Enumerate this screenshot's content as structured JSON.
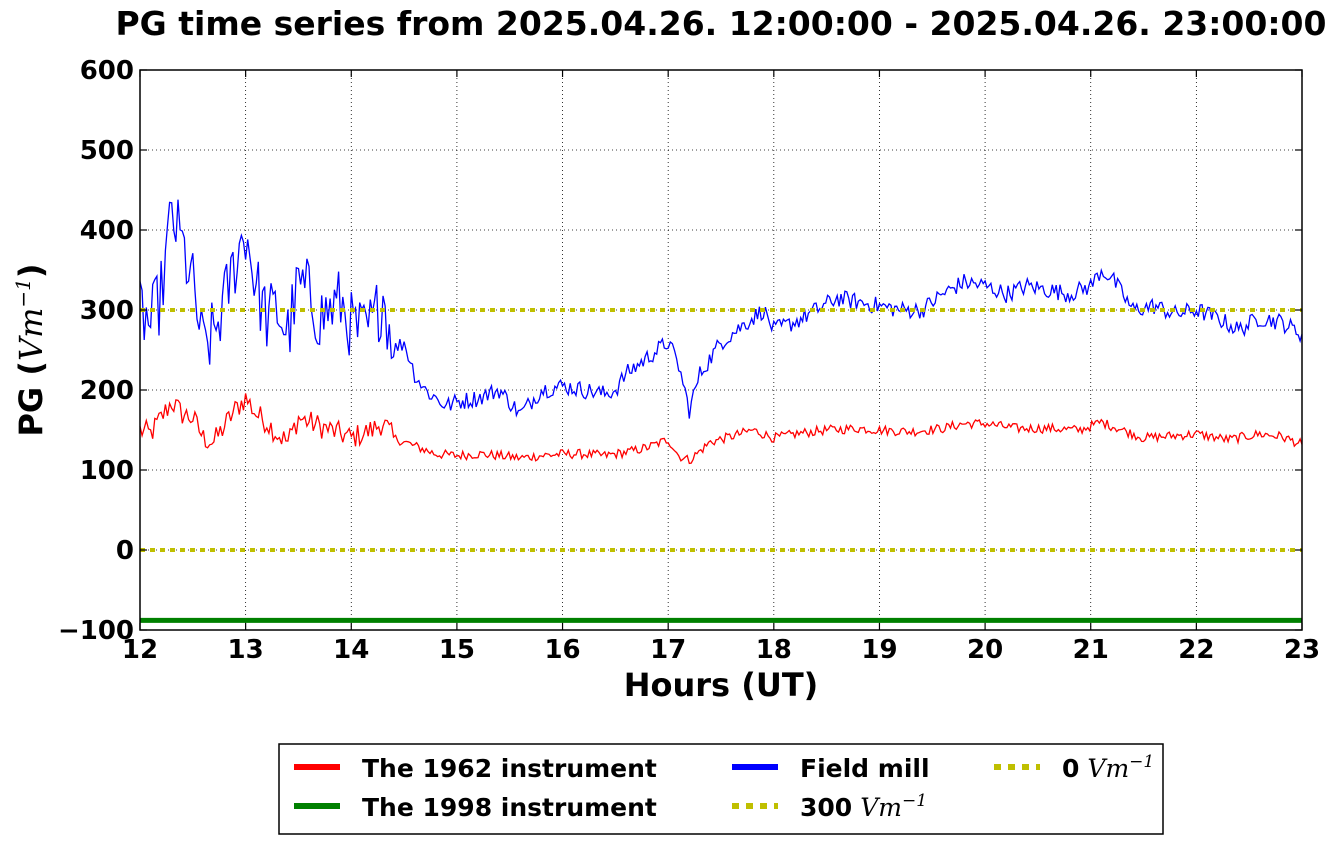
{
  "chart_data": {
    "type": "line",
    "title": "PG time series from 2025.04.26. 12:00:00 - 2025.04.26. 23:00:00",
    "xlabel": "Hours (UT)",
    "ylabel": "PG (",
    "ylabel_unit": "Vm",
    "ylabel_exp": "−1",
    "ylabel_close": ")",
    "xlim": [
      12,
      23
    ],
    "ylim": [
      -100,
      600
    ],
    "xticks": [
      12,
      13,
      14,
      15,
      16,
      17,
      18,
      19,
      20,
      21,
      22,
      23
    ],
    "yticks": [
      -100,
      0,
      100,
      200,
      300,
      400,
      500,
      600
    ],
    "ytick_labels": [
      "−100",
      "0",
      "100",
      "200",
      "300",
      "400",
      "500",
      "600"
    ],
    "grid": true,
    "legend_placement": "bottom-center, outside plot",
    "series": [
      {
        "name": "The 1962 instrument",
        "color": "#ff0000",
        "x": [
          12.0,
          12.1,
          12.2,
          12.3,
          12.4,
          12.5,
          12.6,
          12.7,
          12.8,
          12.9,
          13.0,
          13.1,
          13.2,
          13.3,
          13.4,
          13.5,
          13.6,
          13.7,
          13.8,
          13.9,
          14.0,
          14.1,
          14.2,
          14.3,
          14.4,
          14.5,
          14.6,
          14.8,
          15.0,
          15.2,
          15.4,
          15.6,
          15.8,
          16.0,
          16.2,
          16.4,
          16.6,
          16.8,
          17.0,
          17.1,
          17.2,
          17.4,
          17.6,
          17.8,
          18.0,
          18.2,
          18.5,
          18.8,
          19.0,
          19.3,
          19.6,
          19.8,
          20.0,
          20.3,
          20.6,
          20.9,
          21.1,
          21.3,
          21.5,
          21.8,
          22.0,
          22.3,
          22.6,
          22.8,
          23.0
        ],
        "values": [
          150,
          145,
          165,
          185,
          170,
          165,
          140,
          135,
          155,
          175,
          190,
          170,
          160,
          145,
          135,
          165,
          160,
          155,
          150,
          145,
          140,
          145,
          150,
          160,
          140,
          135,
          130,
          120,
          118,
          120,
          118,
          115,
          118,
          120,
          120,
          118,
          122,
          128,
          138,
          118,
          112,
          135,
          142,
          150,
          140,
          145,
          150,
          152,
          150,
          148,
          152,
          158,
          158,
          152,
          152,
          150,
          160,
          150,
          140,
          143,
          145,
          138,
          145,
          142,
          132
        ]
      },
      {
        "name": "The 1998 instrument",
        "color": "#008000",
        "x": [
          12,
          23
        ],
        "values": [
          -88,
          -88
        ]
      },
      {
        "name": "Field mill",
        "color": "#0000ff",
        "x": [
          12.0,
          12.1,
          12.2,
          12.3,
          12.4,
          12.5,
          12.6,
          12.7,
          12.8,
          12.9,
          13.0,
          13.1,
          13.2,
          13.3,
          13.4,
          13.5,
          13.6,
          13.7,
          13.8,
          13.9,
          14.0,
          14.1,
          14.2,
          14.3,
          14.4,
          14.5,
          14.6,
          14.7,
          14.8,
          14.9,
          15.0,
          15.2,
          15.4,
          15.6,
          15.8,
          16.0,
          16.2,
          16.4,
          16.5,
          16.6,
          16.8,
          17.0,
          17.1,
          17.2,
          17.3,
          17.5,
          17.7,
          17.9,
          18.0,
          18.2,
          18.4,
          18.6,
          18.8,
          19.0,
          19.2,
          19.4,
          19.6,
          19.8,
          20.0,
          20.2,
          20.4,
          20.6,
          20.8,
          21.0,
          21.1,
          21.2,
          21.4,
          21.6,
          21.8,
          22.0,
          22.2,
          22.4,
          22.6,
          22.8,
          23.0
        ],
        "values": [
          300,
          280,
          320,
          420,
          380,
          330,
          250,
          270,
          310,
          360,
          400,
          330,
          290,
          300,
          270,
          330,
          320,
          290,
          300,
          310,
          280,
          270,
          280,
          320,
          250,
          260,
          220,
          200,
          190,
          180,
          185,
          190,
          200,
          170,
          200,
          205,
          200,
          195,
          200,
          220,
          240,
          260,
          230,
          175,
          220,
          260,
          280,
          300,
          275,
          285,
          300,
          315,
          310,
          305,
          300,
          300,
          320,
          335,
          330,
          320,
          330,
          325,
          320,
          330,
          350,
          340,
          300,
          305,
          295,
          300,
          290,
          275,
          290,
          285,
          270
        ]
      },
      {
        "name": "300",
        "unit": "Vm",
        "unit_exp": "−1",
        "color": "#bfbf00",
        "style": "dotted",
        "x": [
          12,
          23
        ],
        "values": [
          300,
          300
        ]
      },
      {
        "name": "0",
        "unit": "Vm",
        "unit_exp": "−1",
        "color": "#bfbf00",
        "style": "dotted",
        "x": [
          12,
          23
        ],
        "values": [
          0,
          0
        ]
      }
    ]
  }
}
